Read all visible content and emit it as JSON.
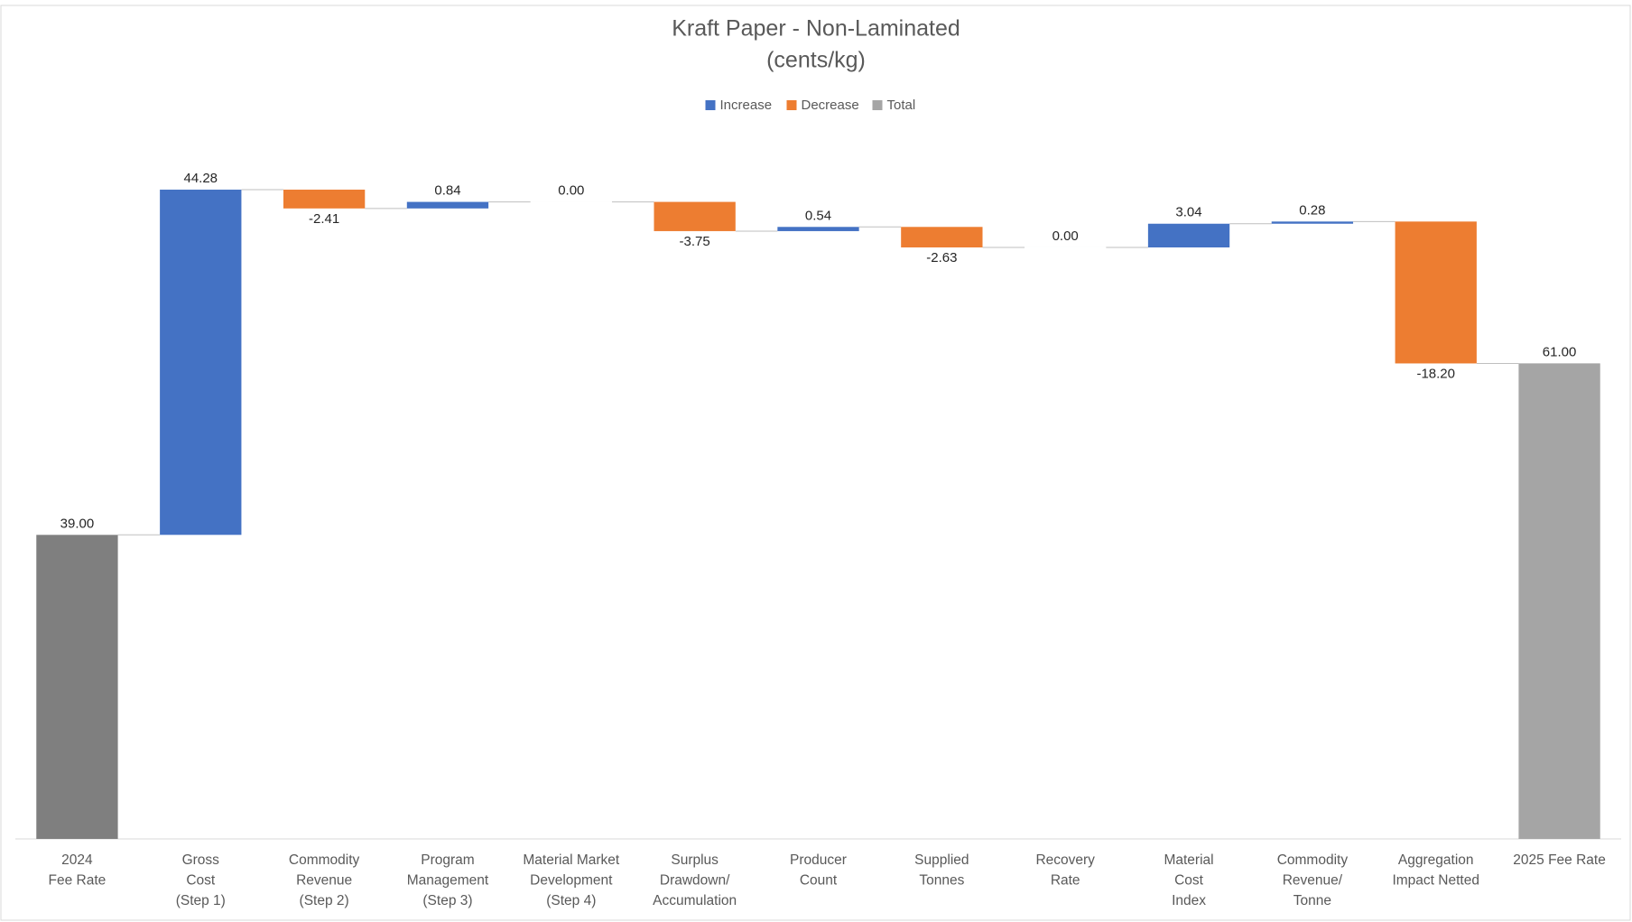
{
  "chart_data": {
    "type": "waterfall",
    "title": [
      "Kraft Paper - Non-Laminated",
      "(cents/kg)"
    ],
    "categories": [
      [
        "2024",
        "Fee Rate"
      ],
      [
        "Gross",
        "Cost",
        "(Step 1)"
      ],
      [
        "Commodity",
        "Revenue",
        "(Step 2)"
      ],
      [
        "Program",
        "Management",
        "(Step 3)"
      ],
      [
        "Material Market",
        "Development",
        "(Step 4)"
      ],
      [
        "Surplus",
        "Drawdown/",
        "Accumulation"
      ],
      [
        "Producer",
        "Count"
      ],
      [
        "Supplied",
        "Tonnes"
      ],
      [
        "Recovery",
        "Rate"
      ],
      [
        "Material",
        "Cost",
        "Index"
      ],
      [
        "Commodity",
        "Revenue/",
        "Tonne"
      ],
      [
        "Aggregation",
        "Impact Netted"
      ],
      [
        "2025 Fee Rate"
      ]
    ],
    "values": [
      39,
      44.28,
      -2.41,
      0.84,
      0,
      -3.75,
      0.54,
      -2.63,
      0,
      3.04,
      0.28,
      -18.2,
      61
    ],
    "value_labels": [
      "39.00",
      "44.28",
      "-2.41",
      "0.84",
      "0.00",
      "-3.75",
      "0.54",
      "-2.63",
      "0.00",
      "3.04",
      "0.28",
      "-18.20",
      "61.00"
    ],
    "point_types": [
      "Total",
      "Increase",
      "Decrease",
      "Increase",
      "Increase",
      "Decrease",
      "Increase",
      "Decrease",
      "Increase",
      "Increase",
      "Increase",
      "Decrease",
      "Total"
    ],
    "legend": [
      {
        "name": "Increase",
        "color": "#4472c4"
      },
      {
        "name": "Decrease",
        "color": "#ed7d31"
      },
      {
        "name": "Total",
        "color": "#a5a5a5"
      }
    ],
    "ylim": [
      0,
      90
    ],
    "legend_position": "top"
  }
}
